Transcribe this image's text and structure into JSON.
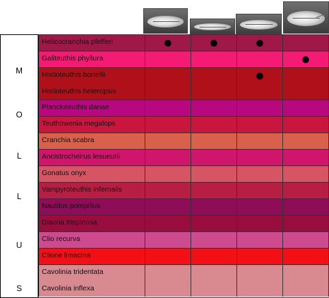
{
  "groups": [
    {
      "letter": "M"
    },
    {
      "letter": "O"
    },
    {
      "letter": "L"
    },
    {
      "letter": "L"
    },
    {
      "letter": "U"
    },
    {
      "letter": "S"
    }
  ],
  "photos": [
    {
      "icon": "squid-specimen-photo-1"
    },
    {
      "icon": "squid-specimen-photo-2"
    },
    {
      "icon": "squid-specimen-photo-3"
    },
    {
      "icon": "squid-specimen-photo-4"
    }
  ],
  "rows": [
    {
      "species": [
        "Helicocranchia pfefferi"
      ],
      "color": "#a01848",
      "dots": [
        true,
        true,
        true,
        false
      ]
    },
    {
      "species": [
        "Galiteuthis phyllura"
      ],
      "color": "#f51a73",
      "dots": [
        false,
        false,
        false,
        true
      ]
    },
    {
      "species": [
        "Histioteuthis bonellii",
        "Histioteuthis heteropsis"
      ],
      "color": "#b0101a",
      "dots": [
        false,
        false,
        true,
        false
      ]
    },
    {
      "species": [
        "Planctoteuthis danae"
      ],
      "color": "#b8087f",
      "dots": [
        false,
        false,
        false,
        false
      ]
    },
    {
      "species": [
        "Teuthowenia megalops"
      ],
      "color": "#c8163e",
      "dots": [
        false,
        false,
        false,
        false
      ]
    },
    {
      "species": [
        "Cranchia scabra"
      ],
      "color": "#d9614c",
      "dots": [
        false,
        false,
        false,
        false
      ]
    },
    {
      "species": [
        "Ancistrocheirus lesueurii"
      ],
      "color": "#d0156d",
      "dots": [
        false,
        false,
        false,
        false
      ]
    },
    {
      "species": [
        "Gonatus onyx"
      ],
      "color": "#d55565",
      "dots": [
        false,
        false,
        false,
        false
      ]
    },
    {
      "species": [
        "Vampyroteuthis infernalis"
      ],
      "color": "#b81e44",
      "dots": [
        false,
        false,
        false,
        false
      ]
    },
    {
      "species": [
        "Nautilus pompilius"
      ],
      "color": "#8e0c58",
      "dots": [
        false,
        false,
        false,
        false
      ]
    },
    {
      "species": [
        "Diacria trispinosa"
      ],
      "color": "#9a0c3e",
      "dots": [
        false,
        false,
        false,
        false
      ]
    },
    {
      "species": [
        "Clio recurva"
      ],
      "color": "#cd4a8e",
      "dots": [
        false,
        false,
        false,
        false
      ]
    },
    {
      "species": [
        "Clione limacina"
      ],
      "color": "#f20f15",
      "dots": [
        false,
        false,
        false,
        false
      ]
    },
    {
      "species": [
        "Cavolinia tridentata",
        "Cavolinia inflexa"
      ],
      "color": "#d98990",
      "dots": [
        false,
        false,
        false,
        false
      ]
    }
  ]
}
